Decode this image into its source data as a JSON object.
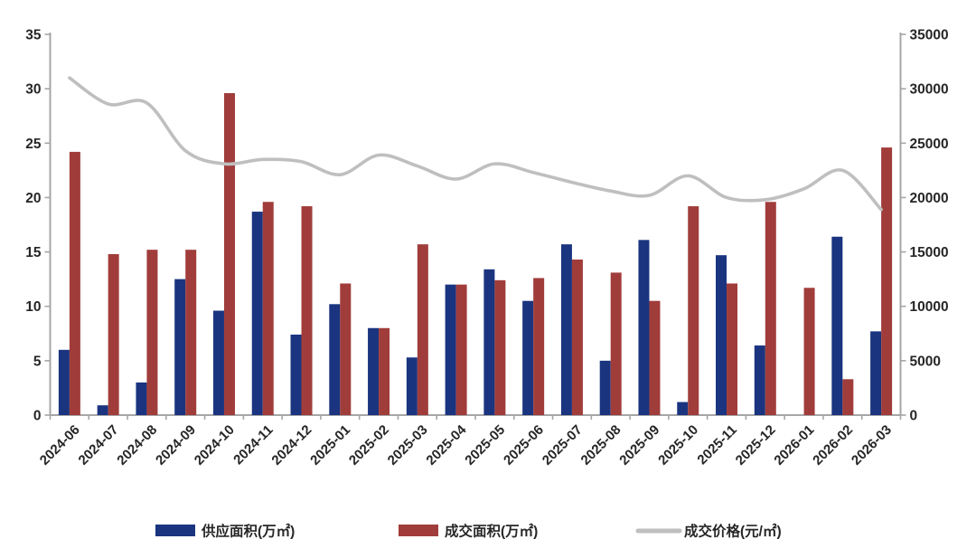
{
  "chart_data": {
    "type": "bar+line",
    "title": "",
    "categories": [
      "2024-06",
      "2024-07",
      "2024-08",
      "2024-09",
      "2024-10",
      "2024-11",
      "2024-12",
      "2025-01",
      "2025-02",
      "2025-03",
      "2025-04",
      "2025-05",
      "2025-06",
      "2025-07",
      "2025-08",
      "2025-09",
      "2025-10",
      "2025-11",
      "2025-12",
      "2026-01",
      "2026-02",
      "2026-03"
    ],
    "series": [
      {
        "key": "supply-area",
        "name": "供应面积(万㎡)",
        "type": "bar",
        "axis": "left",
        "color": "#1A347F",
        "values": [
          6.0,
          0.9,
          3.0,
          12.5,
          9.6,
          18.7,
          7.4,
          10.2,
          8.0,
          5.3,
          12.0,
          13.4,
          10.5,
          15.7,
          5.0,
          16.1,
          1.2,
          14.7,
          6.4,
          0,
          16.4,
          7.7
        ]
      },
      {
        "key": "transaction-area",
        "name": "成交面积(万㎡)",
        "type": "bar",
        "axis": "left",
        "color": "#A03D3B",
        "values": [
          24.2,
          14.8,
          15.2,
          15.2,
          29.6,
          19.6,
          19.2,
          12.1,
          8.0,
          15.7,
          12.0,
          12.4,
          12.6,
          14.3,
          13.1,
          10.5,
          19.2,
          12.1,
          19.6,
          11.7,
          3.3,
          24.6
        ]
      },
      {
        "key": "transaction-price",
        "name": "成交价格(元/㎡)",
        "type": "line",
        "axis": "right",
        "color": "#BFBFBF",
        "values": [
          31000,
          28600,
          28700,
          24300,
          23100,
          23500,
          23300,
          22100,
          23900,
          22900,
          21700,
          23100,
          22300,
          21400,
          20600,
          20200,
          22000,
          20000,
          19800,
          20800,
          22500,
          18900
        ]
      }
    ],
    "left_axis": {
      "min": 0,
      "max": 35,
      "step": 5,
      "tick_labels": [
        "0",
        "5",
        "10",
        "15",
        "20",
        "25",
        "30",
        "35"
      ]
    },
    "right_axis": {
      "min": 0,
      "max": 35000,
      "step": 5000,
      "tick_labels": [
        "0",
        "5000",
        "10000",
        "15000",
        "20000",
        "25000",
        "30000",
        "35000"
      ]
    },
    "grid": false,
    "legend_position": "bottom",
    "smoothed_line": true
  },
  "colors": {
    "background": "#FFFFFF",
    "axis": "#A6A6A6",
    "text": "#262626",
    "supply_bar": "#1A347F",
    "transaction_bar": "#A03D3B",
    "price_line": "#BFBFBF"
  }
}
